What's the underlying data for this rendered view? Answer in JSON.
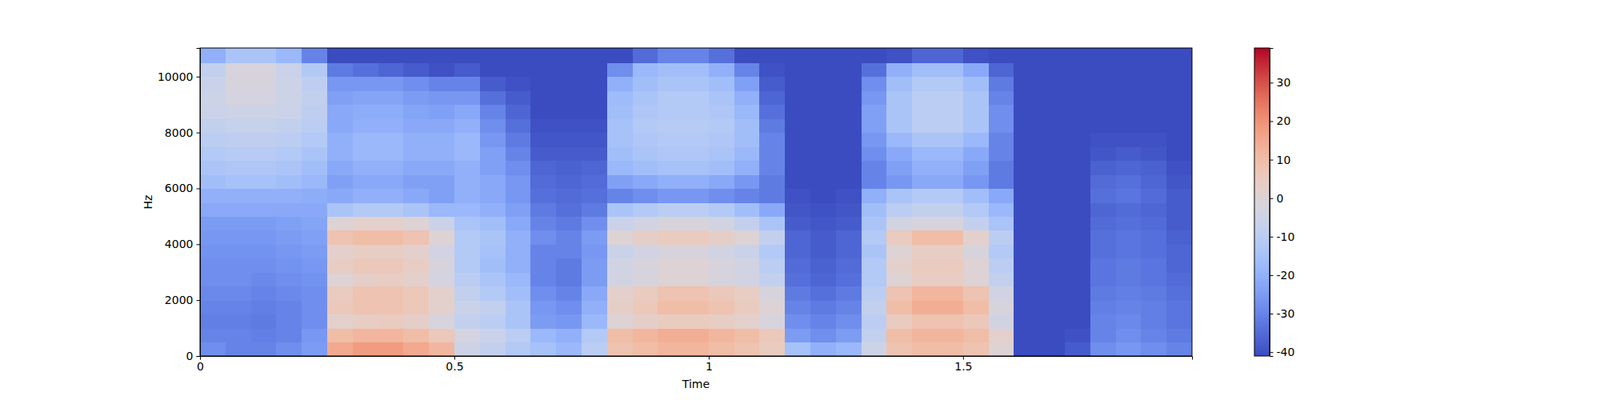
{
  "chart_data": {
    "type": "heatmap",
    "xlabel": "Time",
    "ylabel": "Hz",
    "xlim": [
      0,
      1.95
    ],
    "ylim": [
      0,
      11025
    ],
    "xticks": [
      0,
      0.5,
      1,
      1.5
    ],
    "yticks": [
      0,
      2000,
      4000,
      6000,
      8000,
      10000
    ],
    "x_edges": [
      0,
      0.05,
      0.1,
      0.15,
      0.2,
      0.25,
      0.3,
      0.35,
      0.4,
      0.45,
      0.5,
      0.55,
      0.6,
      0.65,
      0.7,
      0.75,
      0.8,
      0.85,
      0.9,
      0.95,
      1,
      1.05,
      1.1,
      1.15,
      1.2,
      1.25,
      1.3,
      1.35,
      1.4,
      1.45,
      1.5,
      1.55,
      1.6,
      1.65,
      1.7,
      1.75,
      1.8,
      1.85,
      1.9,
      1.95
    ],
    "y_edges": [
      0,
      500,
      1000,
      1500,
      2000,
      2500,
      3000,
      3500,
      4000,
      4500,
      5000,
      5500,
      6000,
      6500,
      7000,
      7500,
      8000,
      8500,
      9000,
      9500,
      10000,
      10500,
      11025
    ],
    "z": [
      [
        -28,
        -30,
        -30,
        -28,
        -25,
        15,
        18,
        18,
        15,
        12,
        -5,
        -8,
        -12,
        -15,
        -18,
        -10,
        8,
        10,
        12,
        12,
        10,
        8,
        5,
        -15,
        -20,
        -18,
        -5,
        8,
        10,
        10,
        8,
        0,
        -41,
        -41,
        -38,
        -28,
        -26,
        -28,
        -30
      ],
      [
        -30,
        -30,
        -31,
        -30,
        -26,
        10,
        12,
        12,
        10,
        6,
        -3,
        -6,
        -10,
        -18,
        -20,
        -12,
        10,
        12,
        14,
        14,
        12,
        10,
        6,
        -25,
        -28,
        -25,
        -8,
        10,
        12,
        12,
        10,
        2,
        -41,
        -41,
        -40,
        -30,
        -28,
        -30,
        -32
      ],
      [
        -31,
        -31,
        -32,
        -30,
        -28,
        2,
        4,
        5,
        3,
        -2,
        -8,
        -10,
        -14,
        -25,
        -26,
        -18,
        0,
        3,
        5,
        5,
        4,
        2,
        -2,
        -28,
        -30,
        -28,
        -10,
        5,
        8,
        8,
        6,
        -4,
        -41,
        -41,
        -41,
        -30,
        -29,
        -31,
        -33
      ],
      [
        -30,
        -30,
        -31,
        -30,
        -28,
        6,
        8,
        8,
        6,
        2,
        -6,
        -8,
        -14,
        -26,
        -28,
        -20,
        3,
        6,
        10,
        10,
        8,
        5,
        0,
        -30,
        -32,
        -30,
        -8,
        10,
        14,
        14,
        10,
        -2,
        -41,
        -41,
        -41,
        -31,
        -30,
        -31,
        -33
      ],
      [
        -29,
        -29,
        -30,
        -29,
        -28,
        5,
        8,
        8,
        6,
        2,
        -8,
        -12,
        -16,
        -28,
        -30,
        -22,
        2,
        5,
        8,
        8,
        6,
        4,
        -2,
        -32,
        -34,
        -32,
        -10,
        8,
        12,
        12,
        8,
        -4,
        -41,
        -41,
        -41,
        -32,
        -31,
        -32,
        -34
      ],
      [
        -28,
        -28,
        -29,
        -28,
        -27,
        0,
        3,
        4,
        2,
        -3,
        -10,
        -14,
        -18,
        -30,
        -32,
        -25,
        -4,
        -2,
        0,
        0,
        -2,
        -4,
        -8,
        -34,
        -36,
        -34,
        -12,
        0,
        4,
        4,
        0,
        -8,
        -41,
        -41,
        -41,
        -33,
        -32,
        -33,
        -35
      ],
      [
        -28,
        -28,
        -28,
        -27,
        -26,
        4,
        6,
        6,
        4,
        -2,
        -12,
        -16,
        -20,
        -30,
        -32,
        -25,
        -4,
        -2,
        0,
        0,
        -2,
        -4,
        -10,
        -35,
        -37,
        -35,
        -12,
        2,
        5,
        5,
        0,
        -10,
        -41,
        -41,
        -41,
        -33,
        -32,
        -33,
        -36
      ],
      [
        -27,
        -27,
        -27,
        -26,
        -25,
        2,
        4,
        4,
        2,
        -4,
        -12,
        -15,
        -20,
        -30,
        -30,
        -26,
        -6,
        -4,
        -2,
        -2,
        -4,
        -6,
        -12,
        -36,
        -38,
        -36,
        -14,
        0,
        4,
        4,
        -2,
        -12,
        -41,
        -41,
        -41,
        -34,
        -33,
        -34,
        -36
      ],
      [
        -26,
        -26,
        -26,
        -25,
        -24,
        8,
        10,
        10,
        8,
        0,
        -12,
        -14,
        -20,
        -28,
        -30,
        -25,
        0,
        3,
        5,
        5,
        3,
        0,
        -8,
        -36,
        -38,
        -36,
        -12,
        5,
        10,
        10,
        2,
        -10,
        -41,
        -41,
        -41,
        -34,
        -33,
        -34,
        -37
      ],
      [
        -25,
        -25,
        -25,
        -24,
        -23,
        0,
        2,
        2,
        0,
        -6,
        -14,
        -16,
        -22,
        -30,
        -32,
        -28,
        -6,
        -4,
        -2,
        -2,
        -4,
        -8,
        -14,
        -38,
        -39,
        -38,
        -14,
        -4,
        -2,
        -2,
        -8,
        -14,
        -41,
        -41,
        -41,
        -35,
        -34,
        -35,
        -38
      ],
      [
        -22,
        -22,
        -22,
        -22,
        -22,
        -14,
        -12,
        -12,
        -14,
        -18,
        -18,
        -20,
        -24,
        -32,
        -34,
        -32,
        -14,
        -12,
        -10,
        -10,
        -12,
        -16,
        -22,
        -39,
        -40,
        -39,
        -16,
        -10,
        -8,
        -8,
        -12,
        -18,
        -41,
        -41,
        -41,
        -36,
        -35,
        -36,
        -38
      ],
      [
        -20,
        -20,
        -20,
        -20,
        -21,
        -22,
        -20,
        -20,
        -22,
        -24,
        -20,
        -22,
        -26,
        -34,
        -35,
        -34,
        -30,
        -28,
        -26,
        -26,
        -28,
        -30,
        -32,
        -40,
        -41,
        -40,
        -20,
        -14,
        -12,
        -12,
        -16,
        -22,
        -41,
        -41,
        -41,
        -34,
        -33,
        -35,
        -38
      ],
      [
        -16,
        -15,
        -15,
        -16,
        -18,
        -24,
        -22,
        -22,
        -24,
        -24,
        -20,
        -22,
        -26,
        -35,
        -36,
        -35,
        -24,
        -22,
        -20,
        -20,
        -22,
        -26,
        -32,
        -41,
        -41,
        -41,
        -30,
        -26,
        -22,
        -22,
        -26,
        -32,
        -41,
        -41,
        -41,
        -35,
        -34,
        -36,
        -39
      ],
      [
        -14,
        -13,
        -13,
        -14,
        -16,
        -22,
        -20,
        -20,
        -22,
        -22,
        -20,
        -24,
        -28,
        -36,
        -37,
        -36,
        -18,
        -16,
        -15,
        -15,
        -16,
        -20,
        -30,
        -41,
        -41,
        -41,
        -30,
        -24,
        -20,
        -20,
        -24,
        -32,
        -41,
        -41,
        -41,
        -37,
        -36,
        -37,
        -40
      ],
      [
        -12,
        -11,
        -11,
        -12,
        -14,
        -20,
        -18,
        -18,
        -20,
        -20,
        -18,
        -24,
        -30,
        -38,
        -38,
        -38,
        -16,
        -14,
        -13,
        -13,
        -14,
        -18,
        -30,
        -41,
        -41,
        -41,
        -28,
        -22,
        -18,
        -18,
        -22,
        -30,
        -41,
        -41,
        -41,
        -39,
        -38,
        -39,
        -41
      ],
      [
        -10,
        -9,
        -9,
        -10,
        -12,
        -20,
        -18,
        -18,
        -20,
        -20,
        -18,
        -26,
        -32,
        -39,
        -39,
        -39,
        -15,
        -13,
        -12,
        -12,
        -13,
        -16,
        -30,
        -41,
        -41,
        -41,
        -26,
        -18,
        -14,
        -14,
        -18,
        -30,
        -41,
        -41,
        -41,
        -40,
        -40,
        -40,
        -41
      ],
      [
        -8,
        -7,
        -7,
        -8,
        -10,
        -22,
        -20,
        -20,
        -22,
        -22,
        -20,
        -28,
        -34,
        -40,
        -40,
        -40,
        -15,
        -12,
        -11,
        -11,
        -12,
        -16,
        -32,
        -41,
        -41,
        -41,
        -24,
        -14,
        -10,
        -10,
        -14,
        -28,
        -41,
        -41,
        -41,
        -41,
        -41,
        -41,
        -41
      ],
      [
        -6,
        -5,
        -5,
        -6,
        -9,
        -22,
        -21,
        -21,
        -23,
        -24,
        -22,
        -30,
        -36,
        -41,
        -41,
        -41,
        -16,
        -13,
        -12,
        -12,
        -13,
        -18,
        -34,
        -41,
        -41,
        -41,
        -24,
        -14,
        -10,
        -10,
        -14,
        -28,
        -41,
        -41,
        -41,
        -41,
        -41,
        -41,
        -41
      ],
      [
        -5,
        -3,
        -3,
        -5,
        -8,
        -24,
        -23,
        -23,
        -25,
        -26,
        -26,
        -34,
        -38,
        -41,
        -41,
        -41,
        -17,
        -14,
        -12,
        -12,
        -14,
        -20,
        -36,
        -41,
        -41,
        -41,
        -26,
        -14,
        -10,
        -10,
        -14,
        -30,
        -41,
        -41,
        -41,
        -41,
        -41,
        -41,
        -41
      ],
      [
        -6,
        -2,
        -2,
        -5,
        -9,
        -26,
        -26,
        -26,
        -28,
        -30,
        -30,
        -38,
        -40,
        -41,
        -41,
        -41,
        -20,
        -16,
        -14,
        -14,
        -16,
        -24,
        -38,
        -41,
        -41,
        -41,
        -28,
        -16,
        -12,
        -12,
        -16,
        -32,
        -41,
        -41,
        -41,
        -41,
        -41,
        -41,
        -41
      ],
      [
        -8,
        -2,
        -2,
        -6,
        -12,
        -32,
        -34,
        -36,
        -38,
        -40,
        -38,
        -41,
        -41,
        -41,
        -41,
        -41,
        -28,
        -18,
        -16,
        -16,
        -20,
        -30,
        -40,
        -41,
        -41,
        -41,
        -34,
        -20,
        -16,
        -16,
        -22,
        -36,
        -41,
        -41,
        -41,
        -41,
        -41,
        -41,
        -41
      ],
      [
        -20,
        -14,
        -14,
        -18,
        -30,
        -41,
        -41,
        -41,
        -41,
        -41,
        -41,
        -41,
        -41,
        -41,
        -41,
        -41,
        -41,
        -35,
        -30,
        -30,
        -34,
        -41,
        -41,
        -41,
        -41,
        -41,
        -41,
        -40,
        -36,
        -36,
        -40,
        -41,
        -41,
        -41,
        -41,
        -41,
        -41,
        -41,
        -41
      ]
    ],
    "colorbar": {
      "range": [
        -41,
        39
      ],
      "ticks": [
        -40,
        -30,
        -20,
        -10,
        0,
        10,
        20,
        30
      ]
    }
  }
}
